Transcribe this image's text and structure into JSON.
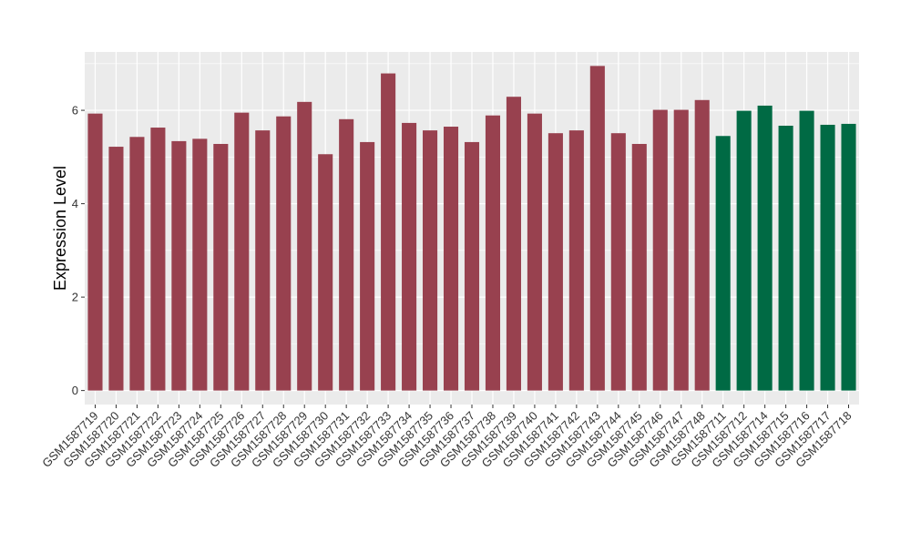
{
  "chart_data": {
    "type": "bar",
    "ylabel": "Expression Level",
    "xlabel": "",
    "ylim": [
      -0.3,
      7.25
    ],
    "yticks": [
      0,
      2,
      4,
      6
    ],
    "grid": true,
    "legend": "none",
    "colors": {
      "group_a": "#98414f",
      "group_b": "#006a44",
      "panel_bg": "#ebebeb",
      "grid": "#ffffff"
    },
    "categories": [
      "GSM1587719",
      "GSM1587720",
      "GSM1587721",
      "GSM1587722",
      "GSM1587723",
      "GSM1587724",
      "GSM1587725",
      "GSM1587726",
      "GSM1587727",
      "GSM1587728",
      "GSM1587729",
      "GSM1587730",
      "GSM1587731",
      "GSM1587732",
      "GSM1587733",
      "GSM1587734",
      "GSM1587735",
      "GSM1587736",
      "GSM1587737",
      "GSM1587738",
      "GSM1587739",
      "GSM1587740",
      "GSM1587741",
      "GSM1587742",
      "GSM1587743",
      "GSM1587744",
      "GSM1587745",
      "GSM1587746",
      "GSM1587747",
      "GSM1587748",
      "GSM1587711",
      "GSM1587712",
      "GSM1587714",
      "GSM1587715",
      "GSM1587716",
      "GSM1587717",
      "GSM1587718"
    ],
    "values": [
      5.93,
      5.22,
      5.43,
      5.63,
      5.34,
      5.39,
      5.28,
      5.95,
      5.57,
      5.87,
      6.18,
      5.06,
      5.81,
      5.32,
      6.79,
      5.73,
      5.57,
      5.65,
      5.32,
      5.89,
      6.29,
      5.93,
      5.51,
      5.57,
      6.95,
      5.51,
      5.28,
      6.01,
      6.01,
      6.22,
      5.45,
      5.99,
      6.1,
      5.67,
      5.99,
      5.69,
      5.71
    ],
    "groups": [
      "a",
      "a",
      "a",
      "a",
      "a",
      "a",
      "a",
      "a",
      "a",
      "a",
      "a",
      "a",
      "a",
      "a",
      "a",
      "a",
      "a",
      "a",
      "a",
      "a",
      "a",
      "a",
      "a",
      "a",
      "a",
      "a",
      "a",
      "a",
      "a",
      "a",
      "b",
      "b",
      "b",
      "b",
      "b",
      "b",
      "b"
    ]
  }
}
